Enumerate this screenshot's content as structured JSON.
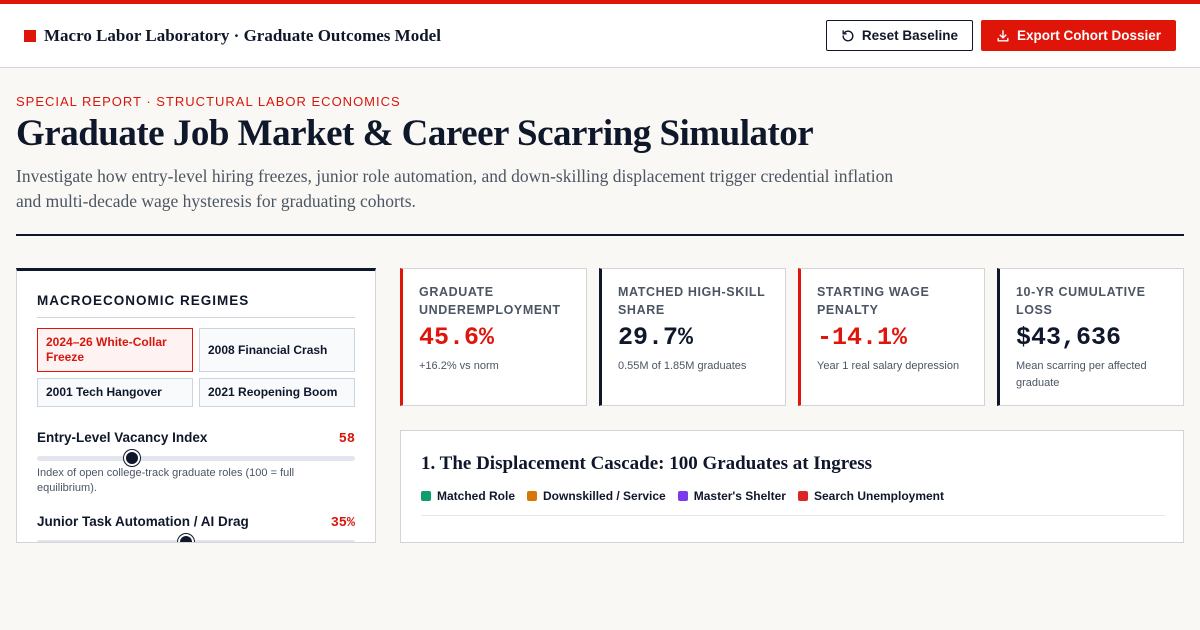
{
  "header": {
    "brand_title": "Macro Labor Laboratory · Graduate Outcomes Model",
    "reset_label": "Reset Baseline",
    "export_label": "Export Cohort Dossier"
  },
  "hero": {
    "kicker": "SPECIAL REPORT · STRUCTURAL LABOR ECONOMICS",
    "title": "Graduate Job Market & Career Scarring Simulator",
    "description": "Investigate how entry-level hiring freezes, junior role automation, and down-skilling displacement trigger credential inflation and multi-decade wage hysteresis for graduating cohorts."
  },
  "controls_panel": {
    "title": "MACROECONOMIC REGIMES",
    "regimes": [
      {
        "label": "2024–26 White-Collar Freeze",
        "active": true
      },
      {
        "label": "2008 Financial Crash",
        "active": false
      },
      {
        "label": "2001 Tech Hangover",
        "active": false
      },
      {
        "label": "2021 Reopening Boom",
        "active": false
      }
    ],
    "sliders": [
      {
        "label": "Entry-Level Vacancy Index",
        "value_text": "58",
        "level": 0.3,
        "help": "Index of open college-track graduate roles (100 = full equilibrium)."
      },
      {
        "label": "Junior Task Automation / AI Drag",
        "value_text": "35%",
        "level": 0.47,
        "help": ""
      }
    ]
  },
  "kpis": [
    {
      "label": "Graduate Underemployment",
      "value": "45.6%",
      "note": "+16.2% vs norm",
      "accent": "red"
    },
    {
      "label": "Matched High-Skill Share",
      "value": "29.7%",
      "note": "0.55M of 1.85M graduates",
      "accent": "dark"
    },
    {
      "label": "Starting Wage Penalty",
      "value": "-14.1%",
      "note": "Year 1 real salary depression",
      "accent": "red"
    },
    {
      "label": "10-Yr Cumulative Loss",
      "value": "$43,636",
      "note": "Mean scarring per affected graduate",
      "accent": "dark"
    }
  ],
  "cascade": {
    "title": "1. The Displacement Cascade: 100 Graduates at Ingress",
    "legend": [
      {
        "label": "Matched Role",
        "color": "#0f9d6e"
      },
      {
        "label": "Downskilled / Service",
        "color": "#d97706"
      },
      {
        "label": "Master's Shelter",
        "color": "#7c3aed"
      },
      {
        "label": "Search Unemployment",
        "color": "#dc2626"
      }
    ]
  },
  "colors": {
    "accent": "#e0150a",
    "ink": "#0f172a",
    "background": "#f9f8f4"
  }
}
